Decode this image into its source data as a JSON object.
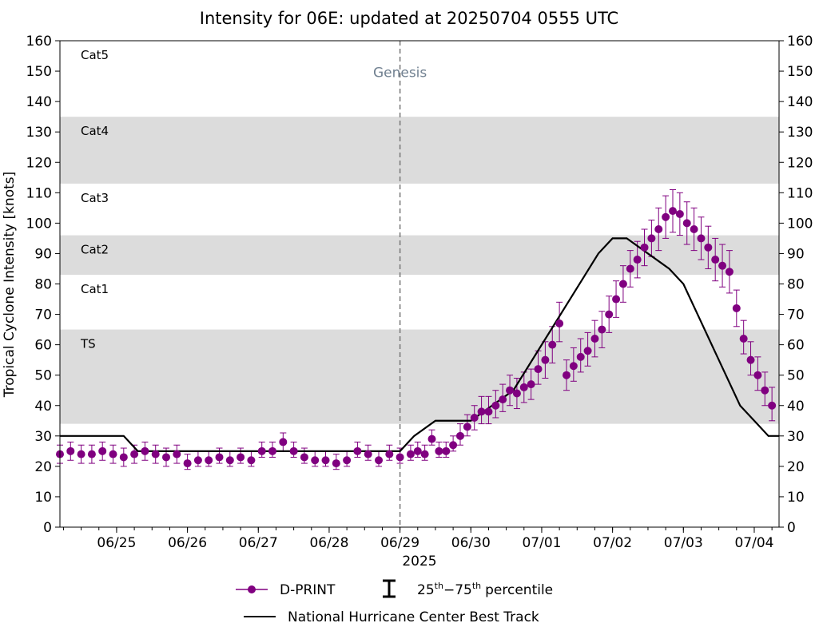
{
  "chart_data": {
    "type": "line",
    "title": "Intensity for 06E: updated at 20250704 0555 UTC",
    "xlabel": "2025",
    "ylabel": "Tropical Cyclone Intensity [knots]",
    "ylim": [
      0,
      160
    ],
    "xlim_days": [
      -0.8,
      9.35
    ],
    "x_ticks": [
      {
        "label": "06/25",
        "day": 0
      },
      {
        "label": "06/26",
        "day": 1
      },
      {
        "label": "06/27",
        "day": 2
      },
      {
        "label": "06/28",
        "day": 3
      },
      {
        "label": "06/29",
        "day": 4
      },
      {
        "label": "06/30",
        "day": 5
      },
      {
        "label": "07/01",
        "day": 6
      },
      {
        "label": "07/02",
        "day": 7
      },
      {
        "label": "07/03",
        "day": 8
      },
      {
        "label": "07/04",
        "day": 9
      }
    ],
    "y_ticks": [
      0,
      10,
      20,
      30,
      40,
      50,
      60,
      70,
      80,
      90,
      100,
      110,
      120,
      130,
      140,
      150,
      160
    ],
    "intensity_bands": [
      {
        "label": "TS",
        "ymin": 34,
        "ymax": 65,
        "shaded": true
      },
      {
        "label": "Cat1",
        "ymin": 65,
        "ymax": 83,
        "shaded": false
      },
      {
        "label": "Cat2",
        "ymin": 83,
        "ymax": 96,
        "shaded": true
      },
      {
        "label": "Cat3",
        "ymin": 96,
        "ymax": 113,
        "shaded": false
      },
      {
        "label": "Cat4",
        "ymin": 113,
        "ymax": 135,
        "shaded": true
      },
      {
        "label": "Cat5",
        "ymin": 135,
        "ymax": 160,
        "shaded": false
      }
    ],
    "genesis": {
      "label": "Genesis",
      "day": 4.0
    },
    "series": [
      {
        "name": "D-PRINT",
        "color": "#800080",
        "marker": "circle",
        "x": [
          -0.8,
          -0.65,
          -0.5,
          -0.35,
          -0.2,
          -0.05,
          0.1,
          0.25,
          0.4,
          0.55,
          0.7,
          0.85,
          1.0,
          1.15,
          1.3,
          1.45,
          1.6,
          1.75,
          1.9,
          2.05,
          2.2,
          2.35,
          2.5,
          2.65,
          2.8,
          2.95,
          3.1,
          3.25,
          3.4,
          3.55,
          3.7,
          3.85,
          4.0,
          4.15,
          4.25,
          4.35,
          4.45,
          4.55,
          4.65,
          4.75,
          4.85,
          4.95,
          5.05,
          5.15,
          5.25,
          5.35,
          5.45,
          5.55,
          5.65,
          5.75,
          5.85,
          5.95,
          6.05,
          6.15,
          6.25,
          6.35,
          6.45,
          6.55,
          6.65,
          6.75,
          6.85,
          6.95,
          7.05,
          7.15,
          7.25,
          7.35,
          7.45,
          7.55,
          7.65,
          7.75,
          7.85,
          7.95,
          8.05,
          8.15,
          8.25,
          8.35,
          8.45,
          8.55,
          8.65,
          8.75,
          8.85,
          8.95,
          9.05,
          9.15,
          9.25
        ],
        "values": [
          24,
          25,
          24,
          24,
          25,
          24,
          23,
          24,
          25,
          24,
          23,
          24,
          21,
          22,
          22,
          23,
          22,
          23,
          22,
          25,
          25,
          28,
          25,
          23,
          22,
          22,
          21,
          22,
          25,
          24,
          22,
          24,
          23,
          24,
          25,
          24,
          29,
          25,
          25,
          27,
          30,
          33,
          36,
          38,
          38,
          40,
          42,
          45,
          44,
          46,
          47,
          52,
          55,
          60,
          67,
          50,
          53,
          56,
          58,
          62,
          65,
          70,
          75,
          80,
          85,
          88,
          92,
          95,
          98,
          102,
          104,
          103,
          100,
          98,
          95,
          92,
          88,
          86,
          84,
          72,
          62,
          55,
          50,
          45,
          40
        ],
        "err_low": [
          21,
          22,
          21,
          21,
          22,
          21,
          20,
          21,
          22,
          21,
          20,
          21,
          19,
          20,
          20,
          21,
          20,
          21,
          20,
          23,
          23,
          25,
          23,
          21,
          20,
          20,
          19,
          20,
          23,
          22,
          20,
          22,
          21,
          22,
          23,
          22,
          27,
          23,
          23,
          25,
          27,
          30,
          32,
          34,
          34,
          36,
          38,
          40,
          39,
          41,
          42,
          47,
          49,
          54,
          61,
          45,
          48,
          51,
          53,
          56,
          59,
          64,
          69,
          74,
          79,
          82,
          86,
          89,
          91,
          95,
          97,
          96,
          93,
          91,
          88,
          85,
          81,
          79,
          77,
          66,
          57,
          50,
          45,
          40,
          35
        ],
        "err_high": [
          27,
          28,
          27,
          27,
          28,
          27,
          26,
          27,
          28,
          27,
          26,
          27,
          24,
          25,
          25,
          26,
          25,
          26,
          25,
          28,
          28,
          31,
          28,
          26,
          25,
          25,
          24,
          25,
          28,
          27,
          25,
          27,
          26,
          27,
          28,
          27,
          32,
          28,
          28,
          30,
          34,
          37,
          40,
          43,
          43,
          45,
          47,
          50,
          49,
          51,
          52,
          58,
          61,
          66,
          74,
          55,
          59,
          62,
          64,
          68,
          71,
          76,
          81,
          86,
          91,
          94,
          98,
          101,
          105,
          109,
          111,
          110,
          107,
          105,
          102,
          99,
          95,
          93,
          91,
          78,
          68,
          61,
          56,
          51,
          46
        ]
      },
      {
        "name": "National Hurricane Center Best Track",
        "color": "#000000",
        "x": [
          -0.8,
          0.1,
          0.3,
          1.0,
          2.0,
          3.0,
          4.0,
          4.2,
          4.5,
          4.8,
          5.0,
          5.3,
          5.6,
          6.0,
          6.4,
          6.8,
          7.0,
          7.2,
          7.5,
          7.8,
          8.0,
          8.2,
          8.5,
          8.8,
          9.0,
          9.2,
          9.35
        ],
        "values": [
          30,
          30,
          25,
          25,
          25,
          25,
          25,
          30,
          35,
          35,
          35,
          40,
          45,
          60,
          75,
          90,
          95,
          95,
          90,
          85,
          80,
          70,
          55,
          40,
          35,
          30,
          30
        ]
      }
    ],
    "legend": {
      "position": "bottom-center",
      "entries": [
        "D-PRINT",
        "25th – 75th percentile",
        "National Hurricane Center Best Track"
      ],
      "percentile_base_lo": "25",
      "percentile_base_hi": "75",
      "percentile_suffix": "th",
      "percentile_dash": "−",
      "percentile_word": "percentile"
    }
  }
}
